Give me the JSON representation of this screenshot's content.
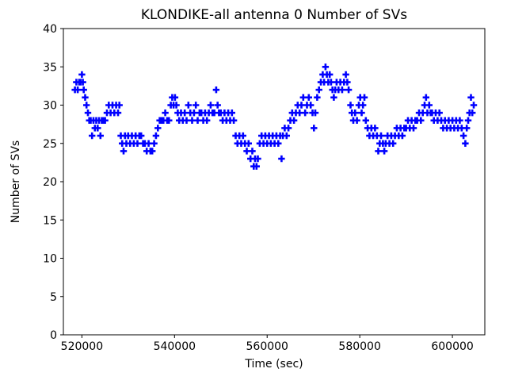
{
  "figure": {
    "background": "#ffffff",
    "text_color": "#000000",
    "axes_color": "#000000"
  },
  "chart_data": {
    "type": "scatter",
    "title": "KLONDIKE-all antenna 0 Number of SVs",
    "xlabel": "Time (sec)",
    "ylabel": "Number of SVs",
    "marker": "plus",
    "marker_color": "#0000ff",
    "grid": false,
    "legend": null,
    "xlim": [
      516000,
      607000
    ],
    "ylim": [
      0,
      40
    ],
    "xticks": [
      520000,
      540000,
      560000,
      580000,
      600000
    ],
    "yticks": [
      0,
      5,
      10,
      15,
      20,
      25,
      30,
      35,
      40
    ],
    "points": [
      [
        518500,
        32
      ],
      [
        518800,
        33
      ],
      [
        519100,
        32
      ],
      [
        519400,
        33
      ],
      [
        519700,
        33
      ],
      [
        520000,
        34
      ],
      [
        520200,
        33
      ],
      [
        520400,
        32
      ],
      [
        520700,
        31
      ],
      [
        521000,
        30
      ],
      [
        521300,
        29
      ],
      [
        521600,
        28
      ],
      [
        521900,
        28
      ],
      [
        522200,
        26
      ],
      [
        522500,
        28
      ],
      [
        522800,
        27
      ],
      [
        523100,
        28
      ],
      [
        523400,
        27
      ],
      [
        523700,
        28
      ],
      [
        524000,
        26
      ],
      [
        524300,
        28
      ],
      [
        524600,
        28
      ],
      [
        525000,
        28
      ],
      [
        525400,
        29
      ],
      [
        525800,
        30
      ],
      [
        526200,
        29
      ],
      [
        526600,
        30
      ],
      [
        527000,
        29
      ],
      [
        527400,
        30
      ],
      [
        527800,
        29
      ],
      [
        528100,
        30
      ],
      [
        528400,
        26
      ],
      [
        528700,
        25
      ],
      [
        529000,
        24
      ],
      [
        529300,
        26
      ],
      [
        529600,
        25
      ],
      [
        530000,
        26
      ],
      [
        530400,
        25
      ],
      [
        530800,
        26
      ],
      [
        531200,
        25
      ],
      [
        531600,
        26
      ],
      [
        532000,
        25
      ],
      [
        532400,
        26
      ],
      [
        532800,
        26
      ],
      [
        533200,
        25
      ],
      [
        533600,
        25
      ],
      [
        534000,
        24
      ],
      [
        534400,
        25
      ],
      [
        534800,
        24
      ],
      [
        535200,
        24
      ],
      [
        535600,
        25
      ],
      [
        536000,
        26
      ],
      [
        536400,
        27
      ],
      [
        536800,
        28
      ],
      [
        537200,
        28
      ],
      [
        537600,
        28
      ],
      [
        538000,
        29
      ],
      [
        538400,
        28
      ],
      [
        538800,
        28
      ],
      [
        539200,
        30
      ],
      [
        539500,
        31
      ],
      [
        539800,
        30
      ],
      [
        540100,
        31
      ],
      [
        540400,
        30
      ],
      [
        540700,
        29
      ],
      [
        541000,
        28
      ],
      [
        541400,
        29
      ],
      [
        541800,
        28
      ],
      [
        542200,
        29
      ],
      [
        542600,
        28
      ],
      [
        543000,
        30
      ],
      [
        543400,
        29
      ],
      [
        543800,
        28
      ],
      [
        544200,
        29
      ],
      [
        544600,
        30
      ],
      [
        545000,
        28
      ],
      [
        545400,
        29
      ],
      [
        545800,
        29
      ],
      [
        546200,
        28
      ],
      [
        546600,
        29
      ],
      [
        547000,
        28
      ],
      [
        547400,
        29
      ],
      [
        547800,
        30
      ],
      [
        548200,
        29
      ],
      [
        548600,
        29
      ],
      [
        549000,
        32
      ],
      [
        549300,
        30
      ],
      [
        549600,
        29
      ],
      [
        550000,
        29
      ],
      [
        550400,
        28
      ],
      [
        550800,
        29
      ],
      [
        551200,
        28
      ],
      [
        551600,
        29
      ],
      [
        552000,
        28
      ],
      [
        552400,
        29
      ],
      [
        552800,
        28
      ],
      [
        553200,
        26
      ],
      [
        553600,
        25
      ],
      [
        554000,
        26
      ],
      [
        554400,
        25
      ],
      [
        554800,
        26
      ],
      [
        555200,
        25
      ],
      [
        555600,
        24
      ],
      [
        556000,
        25
      ],
      [
        556400,
        23
      ],
      [
        556800,
        24
      ],
      [
        557100,
        22
      ],
      [
        557400,
        23
      ],
      [
        557700,
        22
      ],
      [
        558000,
        23
      ],
      [
        558400,
        25
      ],
      [
        558800,
        26
      ],
      [
        559200,
        25
      ],
      [
        559600,
        26
      ],
      [
        560000,
        25
      ],
      [
        560400,
        26
      ],
      [
        560800,
        25
      ],
      [
        561200,
        26
      ],
      [
        561600,
        25
      ],
      [
        562000,
        26
      ],
      [
        562400,
        25
      ],
      [
        562800,
        26
      ],
      [
        563100,
        23
      ],
      [
        563400,
        26
      ],
      [
        563800,
        27
      ],
      [
        564200,
        26
      ],
      [
        564600,
        27
      ],
      [
        565000,
        28
      ],
      [
        565400,
        29
      ],
      [
        565800,
        28
      ],
      [
        566200,
        29
      ],
      [
        566600,
        30
      ],
      [
        567000,
        29
      ],
      [
        567400,
        30
      ],
      [
        567800,
        31
      ],
      [
        568200,
        29
      ],
      [
        568600,
        30
      ],
      [
        569000,
        31
      ],
      [
        569400,
        30
      ],
      [
        569800,
        29
      ],
      [
        570100,
        27
      ],
      [
        570400,
        29
      ],
      [
        570800,
        31
      ],
      [
        571200,
        32
      ],
      [
        571600,
        33
      ],
      [
        572000,
        34
      ],
      [
        572300,
        33
      ],
      [
        572600,
        35
      ],
      [
        572900,
        34
      ],
      [
        573200,
        33
      ],
      [
        573500,
        34
      ],
      [
        573800,
        33
      ],
      [
        574100,
        32
      ],
      [
        574400,
        31
      ],
      [
        574700,
        32
      ],
      [
        575000,
        33
      ],
      [
        575400,
        32
      ],
      [
        575800,
        33
      ],
      [
        576200,
        32
      ],
      [
        576600,
        33
      ],
      [
        577000,
        34
      ],
      [
        577300,
        33
      ],
      [
        577600,
        32
      ],
      [
        578000,
        30
      ],
      [
        578300,
        29
      ],
      [
        578600,
        28
      ],
      [
        579000,
        29
      ],
      [
        579400,
        28
      ],
      [
        579800,
        30
      ],
      [
        580100,
        31
      ],
      [
        580400,
        29
      ],
      [
        580700,
        30
      ],
      [
        581000,
        31
      ],
      [
        581300,
        28
      ],
      [
        581700,
        27
      ],
      [
        582100,
        26
      ],
      [
        582500,
        27
      ],
      [
        582900,
        26
      ],
      [
        583300,
        27
      ],
      [
        583700,
        26
      ],
      [
        584000,
        24
      ],
      [
        584300,
        25
      ],
      [
        584600,
        26
      ],
      [
        585000,
        25
      ],
      [
        585300,
        24
      ],
      [
        585600,
        25
      ],
      [
        586000,
        26
      ],
      [
        586400,
        25
      ],
      [
        586800,
        26
      ],
      [
        587200,
        25
      ],
      [
        587600,
        26
      ],
      [
        588000,
        27
      ],
      [
        588400,
        26
      ],
      [
        588800,
        27
      ],
      [
        589200,
        26
      ],
      [
        589600,
        27
      ],
      [
        590000,
        27
      ],
      [
        590400,
        28
      ],
      [
        590800,
        27
      ],
      [
        591200,
        28
      ],
      [
        591600,
        27
      ],
      [
        592000,
        28
      ],
      [
        592400,
        28
      ],
      [
        592800,
        29
      ],
      [
        593200,
        28
      ],
      [
        593600,
        29
      ],
      [
        594000,
        30
      ],
      [
        594300,
        31
      ],
      [
        594600,
        29
      ],
      [
        595000,
        30
      ],
      [
        595300,
        29
      ],
      [
        595600,
        29
      ],
      [
        596000,
        28
      ],
      [
        596400,
        29
      ],
      [
        596800,
        28
      ],
      [
        597200,
        29
      ],
      [
        597600,
        28
      ],
      [
        598000,
        27
      ],
      [
        598400,
        28
      ],
      [
        598800,
        27
      ],
      [
        599200,
        28
      ],
      [
        599600,
        27
      ],
      [
        600000,
        28
      ],
      [
        600400,
        27
      ],
      [
        600800,
        28
      ],
      [
        601200,
        27
      ],
      [
        601600,
        28
      ],
      [
        602000,
        27
      ],
      [
        602400,
        26
      ],
      [
        602800,
        25
      ],
      [
        603100,
        27
      ],
      [
        603400,
        28
      ],
      [
        603700,
        29
      ],
      [
        604000,
        31
      ],
      [
        604300,
        29
      ],
      [
        604600,
        30
      ]
    ]
  }
}
